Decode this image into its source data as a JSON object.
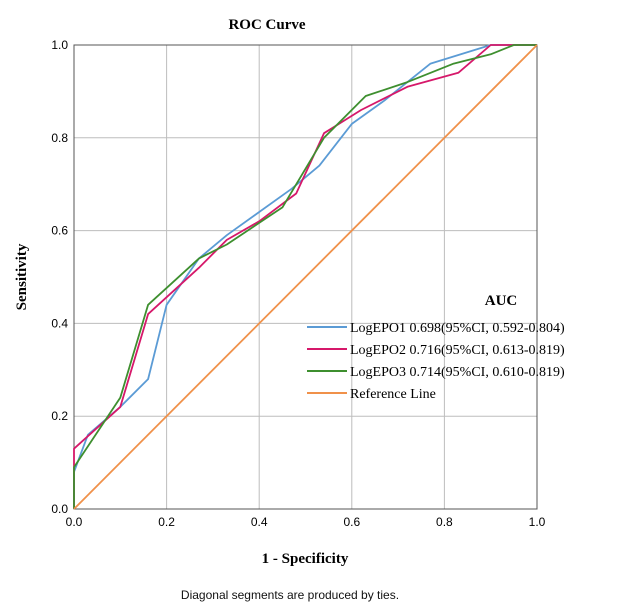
{
  "chart_data": {
    "type": "line",
    "title": "ROC Curve",
    "xlabel": "1 - Specificity",
    "ylabel": "Sensitivity",
    "xlim": [
      0,
      1
    ],
    "ylim": [
      0,
      1
    ],
    "x_ticks": [
      "0.0",
      "0.2",
      "0.4",
      "0.6",
      "0.8",
      "1.0"
    ],
    "y_ticks": [
      "0.0",
      "0.2",
      "0.4",
      "0.6",
      "0.8",
      "1.0"
    ],
    "grid": true,
    "legend_title": "AUC",
    "legend_position": "bottom-right",
    "footnote": "Diagonal segments are produced by ties.",
    "series": [
      {
        "name": "LogEPO1 0.698(95%CI, 0.592-0.804)",
        "color": "#5b9bd5",
        "x": [
          0,
          0,
          0.03,
          0.1,
          0.16,
          0.2,
          0.27,
          0.33,
          0.4,
          0.47,
          0.53,
          0.6,
          0.67,
          0.77,
          0.9,
          1.0
        ],
        "y": [
          0,
          0.08,
          0.16,
          0.22,
          0.28,
          0.44,
          0.54,
          0.59,
          0.64,
          0.69,
          0.74,
          0.83,
          0.88,
          0.96,
          1.0,
          1.0
        ]
      },
      {
        "name": "LogEPO2 0.716(95%CI, 0.613-0.819)",
        "color": "#d6186a",
        "x": [
          0,
          0,
          0.1,
          0.16,
          0.27,
          0.33,
          0.4,
          0.48,
          0.54,
          0.62,
          0.72,
          0.83,
          0.9,
          1.0
        ],
        "y": [
          0,
          0.13,
          0.22,
          0.42,
          0.52,
          0.58,
          0.62,
          0.68,
          0.81,
          0.86,
          0.91,
          0.94,
          1.0,
          1.0
        ]
      },
      {
        "name": "LogEPO3 0.714(95%CI, 0.610-0.819)",
        "color": "#3e8f2f",
        "x": [
          0,
          0,
          0.1,
          0.16,
          0.27,
          0.33,
          0.45,
          0.54,
          0.63,
          0.72,
          0.82,
          0.9,
          0.95,
          1.0
        ],
        "y": [
          0,
          0.09,
          0.24,
          0.44,
          0.54,
          0.57,
          0.65,
          0.8,
          0.89,
          0.92,
          0.96,
          0.98,
          1.0,
          1.0
        ]
      },
      {
        "name": "Reference Line",
        "color": "#f0914a",
        "x": [
          0,
          1
        ],
        "y": [
          0,
          1
        ]
      }
    ]
  }
}
